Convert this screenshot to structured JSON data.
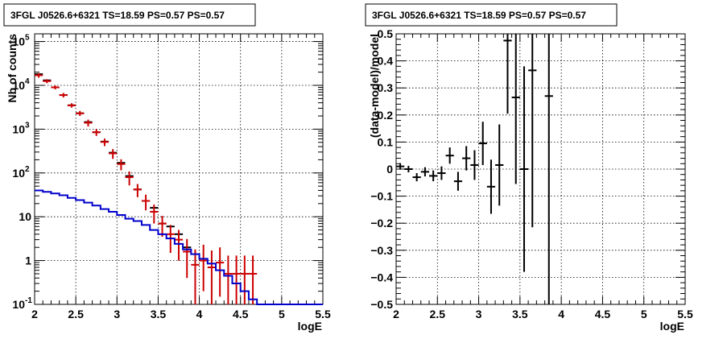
{
  "chart_data": [
    {
      "type": "histogram-with-errorbars",
      "title": "3FGL J0526.6+6321 TS=18.59 PS=0.57 PS=0.57",
      "xlabel": "logE",
      "ylabel": "Nb of counts",
      "xlim": [
        2,
        5.5
      ],
      "ylim": [
        0.1,
        150000
      ],
      "yscale": "log",
      "grid": true,
      "xticks": [
        "2",
        "2.5",
        "3",
        "3.5",
        "4",
        "4.5",
        "5",
        "5.5"
      ],
      "yticks": [
        {
          "value": 0.1,
          "base": "10",
          "exp": "-1"
        },
        {
          "value": 1,
          "base": "1",
          "exp": ""
        },
        {
          "value": 10,
          "base": "10",
          "exp": ""
        },
        {
          "value": 100,
          "base": "10",
          "exp": "2"
        },
        {
          "value": 1000,
          "base": "10",
          "exp": "3"
        },
        {
          "value": 10000,
          "base": "10",
          "exp": "4"
        },
        {
          "value": 100000,
          "base": "10",
          "exp": "5"
        }
      ],
      "series": [
        {
          "color": "#000000",
          "x": [
            2.05,
            2.15,
            2.25,
            2.35,
            2.45,
            2.55,
            2.65,
            2.75,
            2.85,
            2.95,
            3.05,
            3.15,
            3.25,
            3.35,
            3.45,
            3.55,
            3.65,
            3.75,
            3.85
          ],
          "y": [
            18000,
            13000,
            9000,
            6000,
            3500,
            2300,
            1450,
            850,
            520,
            290,
            170,
            85,
            42,
            23,
            16,
            7,
            6,
            4,
            2
          ]
        },
        {
          "color": "#cc0000",
          "x": [
            2.05,
            2.15,
            2.25,
            2.35,
            2.45,
            2.55,
            2.65,
            2.75,
            2.85,
            2.95,
            3.05,
            3.15,
            3.25,
            3.35,
            3.45,
            3.55,
            3.65,
            3.75,
            3.85,
            3.95,
            4.05,
            4.15,
            4.25,
            4.35,
            4.45,
            4.55,
            4.65
          ],
          "y": [
            17000,
            12500,
            9000,
            6000,
            3500,
            2300,
            1400,
            850,
            510,
            280,
            160,
            80,
            42,
            23,
            13,
            7,
            4,
            3,
            1.6,
            0.8,
            1,
            0.7,
            0.9,
            0.5,
            0.5,
            0.5,
            0.5
          ],
          "err_low": [
            2000,
            1300,
            900,
            700,
            400,
            300,
            250,
            150,
            100,
            70,
            45,
            28,
            14,
            9,
            6,
            3.5,
            2.5,
            2,
            1.2,
            0.7,
            0.8,
            0.6,
            0.75,
            0.42,
            0.42,
            0.42,
            0.42
          ],
          "err_high": [
            2000,
            1300,
            900,
            700,
            400,
            300,
            250,
            150,
            100,
            70,
            45,
            28,
            14,
            9,
            6,
            3.5,
            2.5,
            2,
            1.5,
            1.0,
            1.3,
            1.0,
            1.1,
            0.8,
            0.8,
            0.8,
            0.8
          ]
        },
        {
          "color": "#0000cc",
          "x": [
            2.0,
            2.1,
            2.2,
            2.3,
            2.4,
            2.5,
            2.6,
            2.7,
            2.8,
            2.9,
            3.0,
            3.1,
            3.2,
            3.3,
            3.4,
            3.5,
            3.6,
            3.7,
            3.8,
            3.9,
            4.0,
            4.1,
            4.2,
            4.3,
            4.4,
            4.5,
            4.6,
            4.7,
            5.5
          ],
          "y": [
            40,
            37,
            34,
            31,
            27,
            24,
            21,
            18,
            15,
            13,
            11,
            9,
            8,
            6.5,
            5,
            4,
            3.2,
            2.4,
            1.8,
            1.4,
            1.1,
            0.85,
            0.6,
            0.45,
            0.3,
            0.2,
            0.13,
            0.1,
            0.1
          ]
        }
      ]
    },
    {
      "type": "scatter-with-errorbars",
      "title": "3FGL J0526.6+6321 TS=18.59 PS=0.57 PS=0.57",
      "xlabel": "logE",
      "ylabel": "(data-model)/model",
      "xlim": [
        2,
        5.5
      ],
      "ylim": [
        -0.5,
        0.5
      ],
      "yscale": "linear",
      "grid": true,
      "xticks": [
        "2",
        "2.5",
        "3",
        "3.5",
        "4",
        "4.5",
        "5",
        "5.5"
      ],
      "yticks": [
        "−0.5",
        "−0.4",
        "−0.3",
        "−0.2",
        "−0.1",
        "0",
        "0.1",
        "0.2",
        "0.3",
        "0.4",
        "0.5"
      ],
      "series": [
        {
          "color": "#000000",
          "x": [
            2.05,
            2.15,
            2.25,
            2.35,
            2.45,
            2.55,
            2.65,
            2.75,
            2.85,
            2.95,
            3.05,
            3.15,
            3.25,
            3.35,
            3.45,
            3.55,
            3.65,
            3.85
          ],
          "y": [
            0.01,
            0.0,
            -0.03,
            -0.01,
            -0.025,
            -0.015,
            0.05,
            -0.045,
            0.04,
            0.015,
            0.095,
            -0.065,
            0.015,
            0.475,
            0.265,
            0.0,
            0.365,
            0.27
          ],
          "err": [
            0.012,
            0.012,
            0.015,
            0.017,
            0.02,
            0.025,
            0.03,
            0.035,
            0.045,
            0.055,
            0.08,
            0.1,
            0.15,
            0.27,
            0.32,
            0.38,
            0.58,
            0.8
          ]
        }
      ]
    }
  ]
}
